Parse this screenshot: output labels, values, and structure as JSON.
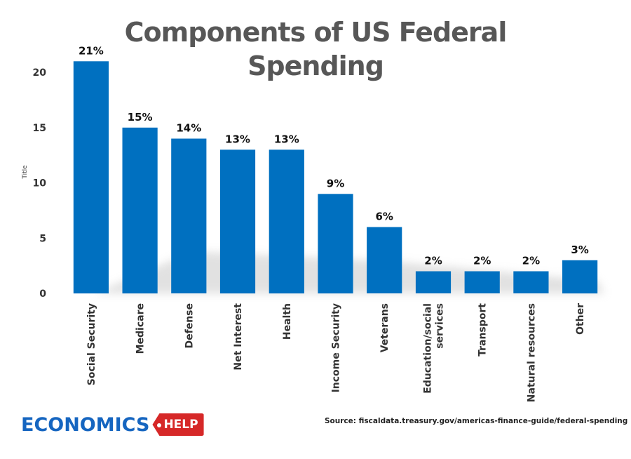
{
  "chart_data": {
    "type": "bar",
    "title": "Components of US Federal Spending",
    "ylabel": "Title",
    "categories": [
      "Social Security",
      "Medicare",
      "Defense",
      "Net Interest",
      "Health",
      "Income Security",
      "Veterans",
      "Education/social services",
      "Transport",
      "Natural resources",
      "Other"
    ],
    "values": [
      21,
      15,
      14,
      13,
      13,
      9,
      6,
      2,
      2,
      2,
      3
    ],
    "data_labels": [
      "21%",
      "15%",
      "14%",
      "13%",
      "13%",
      "9%",
      "6%",
      "2%",
      "2%",
      "2%",
      "3%"
    ],
    "ylim": [
      0,
      20
    ],
    "yticks": [
      0,
      5,
      10,
      15,
      20
    ],
    "bar_color": "#0070c0",
    "grid": false,
    "legend": "none"
  },
  "logo": {
    "name": "ECONOMICS",
    "tag": "HELP",
    "colors": {
      "name": "#1565c0",
      "tag": "#d62828"
    }
  },
  "source": "Source: fiscaldata.treasury.gov/americas-finance-guide/federal-spending"
}
